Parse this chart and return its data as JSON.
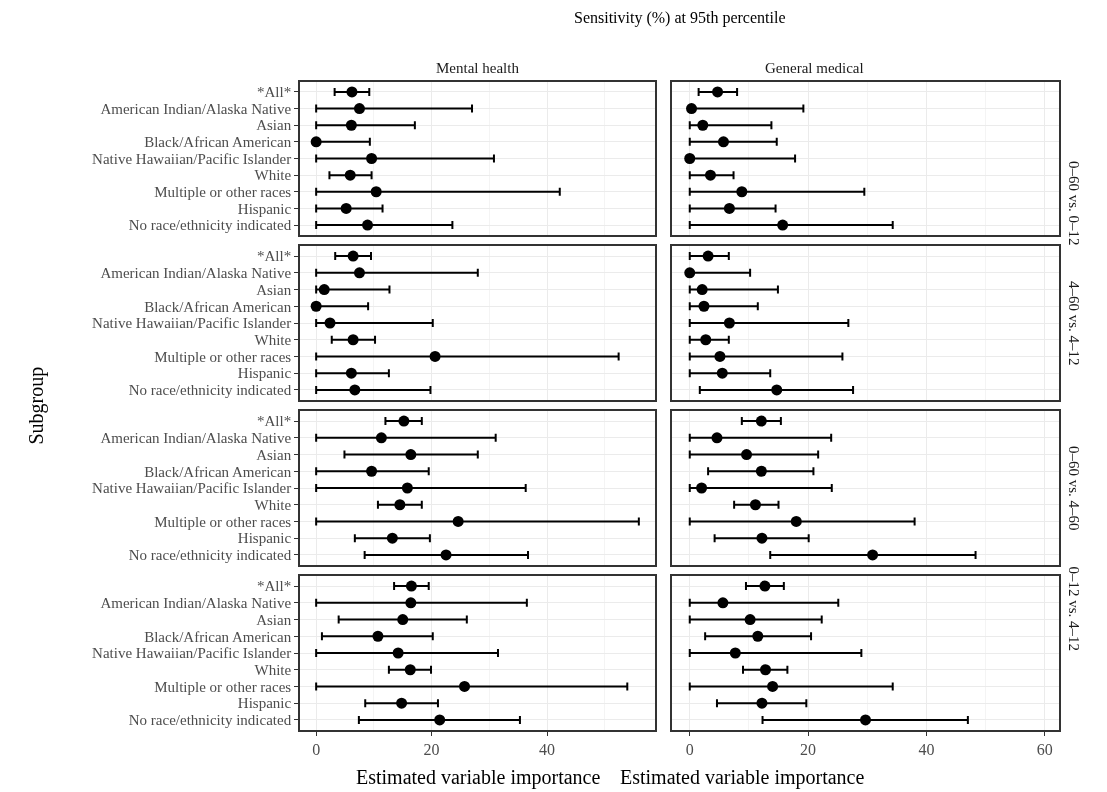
{
  "chart_data": [
    {
      "type": "scatter",
      "title": "Sensitivity (%) at 95th percentile",
      "subtitle": "Mental health",
      "orientation": "horizontal",
      "marker": "circle",
      "grid": true,
      "tick_labels": "y",
      "xlim": [
        -2.8,
        58.7
      ],
      "xticks": [
        0,
        20,
        40,
        {
          "value": 10,
          "label": null
        },
        {
          "value": 30,
          "label": null
        },
        {
          "value": 50,
          "label": null
        }
      ],
      "categories": [
        "*All*",
        "American Indian/Alaska Native",
        "Asian",
        "Black/African American",
        "Native Hawaiian/Pacific Islander",
        "White",
        "Multiple or other races",
        "Hispanic",
        "No race/ethnicity indicated"
      ],
      "series": [
        {
          "color": "#000000",
          "values": [
            6.2,
            7.5,
            6.1,
            0,
            9.6,
            5.9,
            10.4,
            5.2,
            8.9
          ],
          "errors": [
            [
              3.2,
              9.2
            ],
            [
              0,
              27.0
            ],
            [
              0,
              17.1
            ],
            [
              0,
              9.3
            ],
            [
              0,
              30.8
            ],
            [
              2.3,
              9.6
            ],
            [
              0,
              42.2
            ],
            [
              0,
              11.5
            ],
            [
              0,
              23.6
            ]
          ]
        }
      ]
    },
    {
      "type": "scatter",
      "subtitle": "General medical",
      "orientation": "horizontal",
      "marker": "circle",
      "grid": true,
      "tick_labels": false,
      "xlim": [
        -3.0,
        62.4
      ],
      "xticks": [
        0,
        20,
        40,
        60,
        {
          "value": 10,
          "label": null
        },
        {
          "value": 30,
          "label": null
        },
        {
          "value": 50,
          "label": null
        }
      ],
      "annotations": [
        "0–60 vs. 0–12"
      ],
      "categories": [
        "*All*",
        "American Indian/Alaska Native",
        "Asian",
        "Black/African American",
        "Native Hawaiian/Pacific Islander",
        "White",
        "Multiple or other races",
        "Hispanic",
        "No race/ethnicity indicated"
      ],
      "series": [
        {
          "color": "#000000",
          "values": [
            4.7,
            0.3,
            2.2,
            5.7,
            0,
            3.5,
            8.8,
            6.7,
            15.7
          ],
          "errors": [
            [
              1.5,
              8.0
            ],
            [
              0,
              19.2
            ],
            [
              0,
              13.8
            ],
            [
              0,
              14.7
            ],
            [
              0,
              17.8
            ],
            [
              0,
              7.4
            ],
            [
              0,
              29.5
            ],
            [
              0,
              14.5
            ],
            [
              0,
              34.3
            ]
          ]
        }
      ]
    },
    {
      "type": "scatter",
      "ylabel": "Subgroup",
      "orientation": "horizontal",
      "marker": "circle",
      "grid": true,
      "tick_labels": "y",
      "xlim": [
        -2.8,
        58.7
      ],
      "xticks": [
        0,
        20,
        40,
        {
          "value": 10,
          "label": null
        },
        {
          "value": 30,
          "label": null
        },
        {
          "value": 50,
          "label": null
        }
      ],
      "categories": [
        "*All*",
        "American Indian/Alaska Native",
        "Asian",
        "Black/African American",
        "Native Hawaiian/Pacific Islander",
        "White",
        "Multiple or other races",
        "Hispanic",
        "No race/ethnicity indicated"
      ],
      "series": [
        {
          "color": "#000000",
          "values": [
            6.4,
            7.5,
            1.4,
            0,
            2.4,
            6.4,
            20.6,
            6.1,
            6.7
          ],
          "errors": [
            [
              3.3,
              9.5
            ],
            [
              0,
              28.0
            ],
            [
              0,
              12.7
            ],
            [
              0,
              9.0
            ],
            [
              0,
              20.2
            ],
            [
              2.7,
              10.2
            ],
            [
              0,
              52.4
            ],
            [
              0,
              12.6
            ],
            [
              0,
              19.8
            ]
          ]
        }
      ]
    },
    {
      "type": "scatter",
      "orientation": "horizontal",
      "marker": "circle",
      "grid": true,
      "tick_labels": false,
      "xlim": [
        -3.0,
        62.4
      ],
      "xticks": [
        0,
        20,
        40,
        60,
        {
          "value": 10,
          "label": null
        },
        {
          "value": 30,
          "label": null
        },
        {
          "value": 50,
          "label": null
        }
      ],
      "annotations": [
        "4–60 vs. 4–12"
      ],
      "categories": [
        "*All*",
        "American Indian/Alaska Native",
        "Asian",
        "Black/African American",
        "Native Hawaiian/Pacific Islander",
        "White",
        "Multiple or other races",
        "Hispanic",
        "No race/ethnicity indicated"
      ],
      "series": [
        {
          "color": "#000000",
          "values": [
            3.1,
            0,
            2.1,
            2.4,
            6.7,
            2.7,
            5.1,
            5.5,
            14.7
          ],
          "errors": [
            [
              0,
              6.6
            ],
            [
              0,
              10.2
            ],
            [
              0,
              14.9
            ],
            [
              0,
              11.5
            ],
            [
              0,
              26.8
            ],
            [
              0,
              6.6
            ],
            [
              0,
              25.8
            ],
            [
              0,
              13.6
            ],
            [
              1.7,
              27.6
            ]
          ]
        }
      ]
    },
    {
      "type": "scatter",
      "orientation": "horizontal",
      "marker": "circle",
      "grid": true,
      "tick_labels": "y",
      "xlim": [
        -2.8,
        58.7
      ],
      "xticks": [
        0,
        20,
        40,
        {
          "value": 10,
          "label": null
        },
        {
          "value": 30,
          "label": null
        },
        {
          "value": 50,
          "label": null
        }
      ],
      "categories": [
        "*All*",
        "American Indian/Alaska Native",
        "Asian",
        "Black/African American",
        "Native Hawaiian/Pacific Islander",
        "White",
        "Multiple or other races",
        "Hispanic",
        "No race/ethnicity indicated"
      ],
      "series": [
        {
          "color": "#000000",
          "values": [
            15.2,
            11.3,
            16.4,
            9.6,
            15.8,
            14.5,
            24.6,
            13.2,
            22.5
          ],
          "errors": [
            [
              12.0,
              18.3
            ],
            [
              0,
              31.1
            ],
            [
              4.9,
              28.0
            ],
            [
              0,
              19.5
            ],
            [
              0,
              36.3
            ],
            [
              10.7,
              18.3
            ],
            [
              0,
              55.9
            ],
            [
              6.7,
              19.7
            ],
            [
              8.4,
              36.7
            ]
          ]
        }
      ]
    },
    {
      "type": "scatter",
      "orientation": "horizontal",
      "marker": "circle",
      "grid": true,
      "tick_labels": false,
      "xlim": [
        -3.0,
        62.4
      ],
      "xticks": [
        0,
        20,
        40,
        60,
        {
          "value": 10,
          "label": null
        },
        {
          "value": 30,
          "label": null
        },
        {
          "value": 50,
          "label": null
        }
      ],
      "annotations": [
        "0–60 vs. 4–60"
      ],
      "categories": [
        "*All*",
        "American Indian/Alaska Native",
        "Asian",
        "Black/African American",
        "Native Hawaiian/Pacific Islander",
        "White",
        "Multiple or other races",
        "Hispanic",
        "No race/ethnicity indicated"
      ],
      "series": [
        {
          "color": "#000000",
          "values": [
            12.1,
            4.6,
            9.6,
            12.1,
            2.0,
            11.1,
            18.0,
            12.2,
            30.9
          ],
          "errors": [
            [
              8.8,
              15.4
            ],
            [
              0,
              23.9
            ],
            [
              0,
              21.7
            ],
            [
              3.1,
              20.9
            ],
            [
              0,
              24.0
            ],
            [
              7.5,
              15.0
            ],
            [
              0,
              38.0
            ],
            [
              4.2,
              20.1
            ],
            [
              13.6,
              48.3
            ]
          ]
        }
      ]
    },
    {
      "type": "scatter",
      "xlabel": "Estimated variable importance",
      "orientation": "horizontal",
      "marker": "circle",
      "grid": true,
      "xlim": [
        -2.8,
        58.7
      ],
      "xticks": [
        0,
        20,
        40,
        {
          "value": 10,
          "label": null
        },
        {
          "value": 30,
          "label": null
        },
        {
          "value": 50,
          "label": null
        }
      ],
      "categories": [
        "*All*",
        "American Indian/Alaska Native",
        "Asian",
        "Black/African American",
        "Native Hawaiian/Pacific Islander",
        "White",
        "Multiple or other races",
        "Hispanic",
        "No race/ethnicity indicated"
      ],
      "series": [
        {
          "color": "#000000",
          "values": [
            16.5,
            16.4,
            15.0,
            10.7,
            14.2,
            16.3,
            25.7,
            14.8,
            21.4
          ],
          "errors": [
            [
              13.5,
              19.5
            ],
            [
              0,
              36.5
            ],
            [
              3.9,
              26.1
            ],
            [
              1.0,
              20.2
            ],
            [
              0,
              31.5
            ],
            [
              12.6,
              19.9
            ],
            [
              0,
              53.9
            ],
            [
              8.5,
              21.1
            ],
            [
              7.4,
              35.3
            ]
          ]
        }
      ]
    },
    {
      "type": "scatter",
      "xlabel": "Estimated variable importance",
      "orientation": "horizontal",
      "marker": "circle",
      "grid": true,
      "tick_labels": "x",
      "xlim": [
        -3.0,
        62.4
      ],
      "xticks": [
        0,
        20,
        40,
        60,
        {
          "value": 10,
          "label": null
        },
        {
          "value": 30,
          "label": null
        },
        {
          "value": 50,
          "label": null
        }
      ],
      "annotations": [
        "0–12 vs. 4–12"
      ],
      "categories": [
        "*All*",
        "American Indian/Alaska Native",
        "Asian",
        "Black/African American",
        "Native Hawaiian/Pacific Islander",
        "White",
        "Multiple or other races",
        "Hispanic",
        "No race/ethnicity indicated"
      ],
      "series": [
        {
          "color": "#000000",
          "values": [
            12.7,
            5.6,
            10.2,
            11.5,
            7.7,
            12.8,
            14.0,
            12.2,
            29.7
          ],
          "errors": [
            [
              9.5,
              15.9
            ],
            [
              0,
              25.1
            ],
            [
              0,
              22.3
            ],
            [
              2.6,
              20.5
            ],
            [
              0,
              29.0
            ],
            [
              9.0,
              16.5
            ],
            [
              0,
              34.3
            ],
            [
              4.6,
              19.7
            ],
            [
              12.3,
              47.0
            ]
          ]
        }
      ]
    }
  ]
}
